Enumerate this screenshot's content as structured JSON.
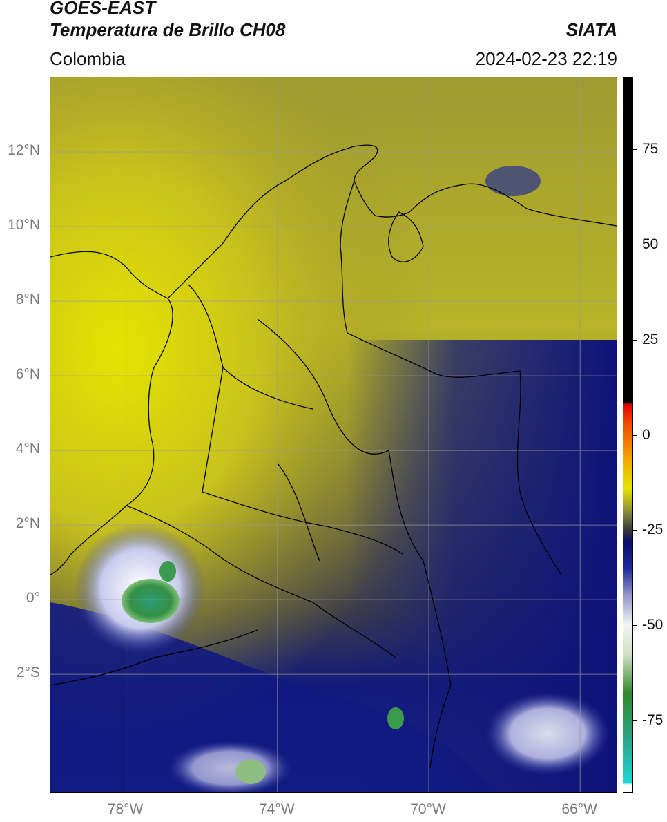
{
  "header": {
    "title_line1": "GOES-EAST",
    "title_line2": "Temperatura de Brillo CH08",
    "organization": "SIATA",
    "region": "Colombia",
    "timestamp": "2024-02-23 22:19"
  },
  "map": {
    "lat_labels": [
      "12°N",
      "10°N",
      "8°N",
      "6°N",
      "4°N",
      "2°N",
      "0°",
      "2°S"
    ],
    "lon_labels": [
      "78°W",
      "74°W",
      "70°W",
      "66°W"
    ],
    "extent": {
      "lon_min": -80,
      "lon_max": -65,
      "lat_min": -5.2,
      "lat_max": 14
    },
    "gridline_color": "#9a9a9a",
    "border_color": "#000000"
  },
  "colorbar": {
    "labels": [
      "75",
      "50",
      "25",
      "0",
      "-25",
      "-50",
      "-75"
    ],
    "values": [
      75,
      50,
      25,
      0,
      -25,
      -50,
      -75
    ],
    "range": [
      -94,
      94
    ],
    "stops": [
      {
        "v": -94,
        "c": "#ffffff"
      },
      {
        "v": -92,
        "c": "#ffffff"
      },
      {
        "v": -91.5,
        "c": "#1fd6d6"
      },
      {
        "v": -80,
        "c": "#2aa58a"
      },
      {
        "v": -68,
        "c": "#2f8a2a"
      },
      {
        "v": -58,
        "c": "#cde0c0"
      },
      {
        "v": -50,
        "c": "#f4f4f4"
      },
      {
        "v": -42,
        "c": "#8f93c8"
      },
      {
        "v": -35,
        "c": "#1d2a9a"
      },
      {
        "v": -28,
        "c": "#0b0f6a"
      },
      {
        "v": -25,
        "c": "#3a3a3a"
      },
      {
        "v": -20,
        "c": "#8e8e3a"
      },
      {
        "v": -14,
        "c": "#e6e600"
      },
      {
        "v": -6,
        "c": "#f3a400"
      },
      {
        "v": 3,
        "c": "#f24a00"
      },
      {
        "v": 8,
        "c": "#e50000"
      },
      {
        "v": 8.5,
        "c": "#000000"
      },
      {
        "v": 94,
        "c": "#000000"
      }
    ]
  }
}
